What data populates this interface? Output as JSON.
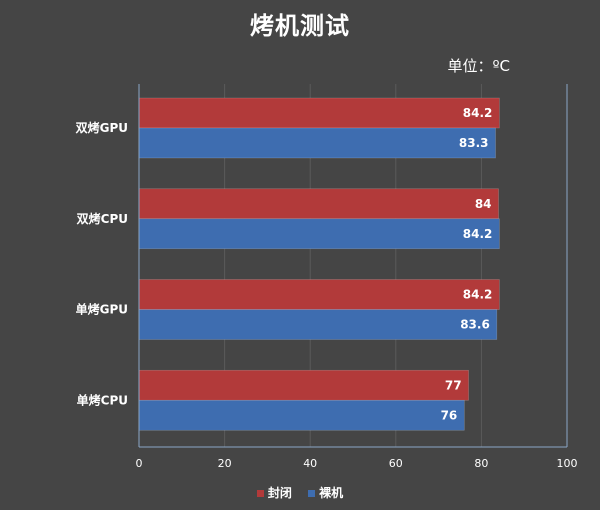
{
  "title": "烤机测试",
  "unit_label": "单位：ºC",
  "colors": {
    "sealed": "#b23a3a",
    "open": "#3e6db0",
    "gridline": "#5a5a5a",
    "axis": "#8aa6c8",
    "background": "#454545"
  },
  "chart_data": {
    "type": "bar",
    "orientation": "horizontal",
    "title": "烤机测试",
    "categories": [
      "双烤GPU",
      "双烤CPU",
      "单烤GPU",
      "单烤CPU"
    ],
    "series": [
      {
        "name": "封闭",
        "color": "#b23a3a",
        "values": [
          84.2,
          84,
          84.2,
          77
        ]
      },
      {
        "name": "裸机",
        "color": "#3e6db0",
        "values": [
          83.3,
          84.2,
          83.6,
          76
        ]
      }
    ],
    "xlim": [
      0,
      100
    ],
    "xticks": [
      0,
      20,
      40,
      60,
      80,
      100
    ],
    "grid": true,
    "legend": "bottom-center"
  },
  "legend": {
    "items": [
      {
        "name": "封闭"
      },
      {
        "name": "裸机"
      }
    ]
  }
}
